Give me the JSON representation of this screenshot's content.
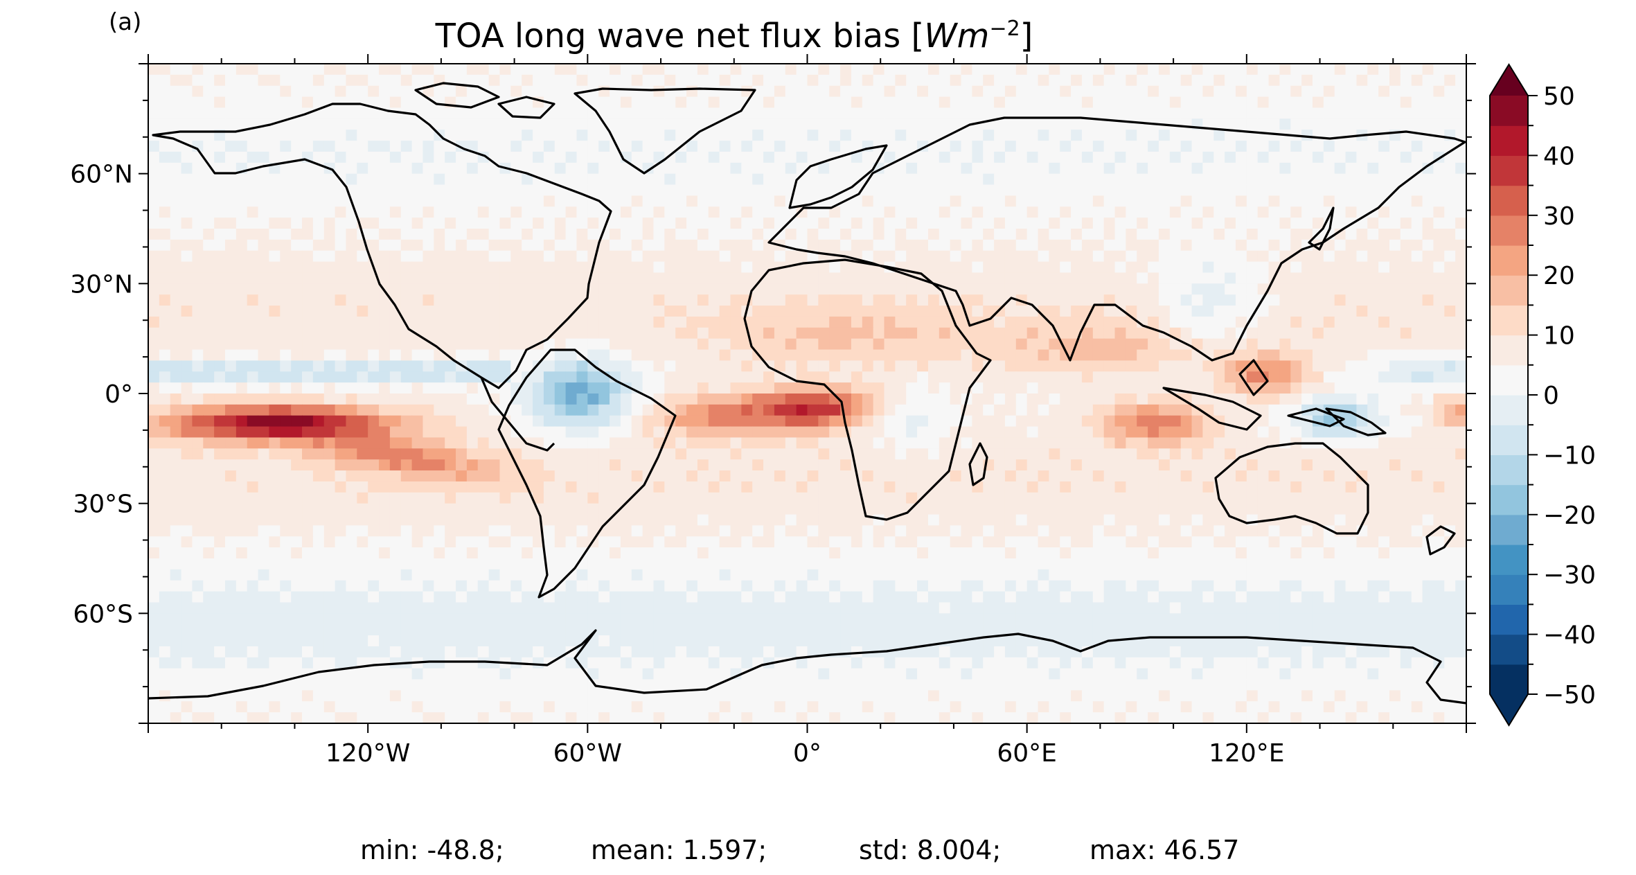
{
  "panel_label": "(a)",
  "title": {
    "main": "TOA long wave net flux bias [",
    "unit_base": "Wm",
    "unit_exp": "−2",
    "close": "]"
  },
  "stats": {
    "min": "min: -48.8;",
    "mean": "mean: 1.597;",
    "std": "std: 8.004;",
    "max": "max: 46.57"
  },
  "chart_data": {
    "type": "heatmap",
    "projection": "PlateCarree",
    "title": "TOA long wave net flux bias [Wm^-2]",
    "xlim": [
      -180,
      180
    ],
    "ylim": [
      -90,
      90
    ],
    "x_ticks": [
      {
        "value": -120,
        "label": "120°W"
      },
      {
        "value": -60,
        "label": "60°W"
      },
      {
        "value": 0,
        "label": "0°"
      },
      {
        "value": 60,
        "label": "60°E"
      },
      {
        "value": 120,
        "label": "120°E"
      }
    ],
    "y_ticks": [
      {
        "value": 60,
        "label": "60°N"
      },
      {
        "value": 30,
        "label": "30°N"
      },
      {
        "value": 0,
        "label": "0°"
      },
      {
        "value": -30,
        "label": "30°S"
      },
      {
        "value": -60,
        "label": "60°S"
      }
    ],
    "colorbar": {
      "cmap": "RdBu_r",
      "vmin": -50,
      "vmax": 50,
      "level_step": 5,
      "extend": "both",
      "ticks": [
        50,
        40,
        30,
        20,
        10,
        0,
        -10,
        -20,
        -30,
        -40,
        -50
      ],
      "tick_labels": [
        "50",
        "40",
        "30",
        "20",
        "10",
        "0",
        "−10",
        "−20",
        "−30",
        "−40",
        "−50"
      ],
      "colors": [
        "#053061",
        "#134c87",
        "#2166ac",
        "#3581ba",
        "#4393c3",
        "#6fabd0",
        "#92c5de",
        "#b3d6e8",
        "#d1e5f0",
        "#e5eef3",
        "#f7f7f7",
        "#f9ebe3",
        "#fddbc7",
        "#f8bfa4",
        "#f4a582",
        "#e58267",
        "#d6604d",
        "#c13639",
        "#b2182b",
        "#8a0b25",
        "#67001f"
      ]
    },
    "features": [
      {
        "name": "Pacific ITCZ double band",
        "lon": [
          -180,
          -100
        ],
        "lat": [
          -15,
          -5
        ],
        "value": 40
      },
      {
        "name": "Equatorial Atlantic / Gulf of Guinea",
        "lon": [
          -30,
          15
        ],
        "lat": [
          -10,
          5
        ],
        "value": 35
      },
      {
        "name": "Amazon basin",
        "lon": [
          -75,
          -45
        ],
        "lat": [
          -10,
          10
        ],
        "value": -25
      },
      {
        "name": "Maritime continent west",
        "lon": [
          85,
          130
        ],
        "lat": [
          -12,
          8
        ],
        "value": 25
      },
      {
        "name": "New Guinea / Coral Sea",
        "lon": [
          130,
          160
        ],
        "lat": [
          -15,
          0
        ],
        "value": -20
      },
      {
        "name": "Tropical Pacific north band",
        "lon": [
          -180,
          -80
        ],
        "lat": [
          3,
          9
        ],
        "value": -12
      },
      {
        "name": "Southern Ocean",
        "lon": [
          -180,
          180
        ],
        "lat": [
          -75,
          -55
        ],
        "value": -8
      },
      {
        "name": "Subtropics",
        "lon": [
          -180,
          180
        ],
        "lat": [
          -40,
          40
        ],
        "value": 5
      }
    ],
    "summary": {
      "min": -48.8,
      "mean": 1.597,
      "std": 8.004,
      "max": 46.57
    }
  }
}
